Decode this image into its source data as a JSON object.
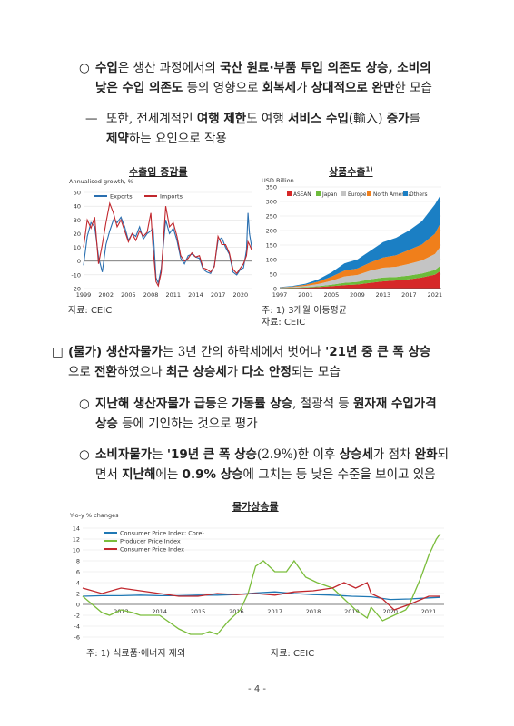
{
  "paragraphs": {
    "p1": {
      "marker": "○",
      "line1": [
        {
          "t": "수입",
          "b": true
        },
        {
          "t": "은 생산 과정에서의 ",
          "b": false
        },
        {
          "t": "국산 원료·부품 투입 의존도 상승, 소비의",
          "b": true
        }
      ],
      "line2": [
        {
          "t": "낮은 수입 의존도",
          "b": true
        },
        {
          "t": " 등의 영향으로 ",
          "b": false
        },
        {
          "t": "회복세",
          "b": true
        },
        {
          "t": "가 ",
          "b": false
        },
        {
          "t": "상대적으로 완만",
          "b": true
        },
        {
          "t": "한 모습",
          "b": false
        }
      ]
    },
    "p2": {
      "marker": "—",
      "line1": [
        {
          "t": "또한, 전세계적인 ",
          "b": false
        },
        {
          "t": "여행 제한",
          "b": true
        },
        {
          "t": "도 여행 ",
          "b": false
        },
        {
          "t": "서비스 수입",
          "b": true
        },
        {
          "t": "(輸入) ",
          "b": false
        },
        {
          "t": "증가",
          "b": true
        },
        {
          "t": "를",
          "b": false
        }
      ],
      "line2": [
        {
          "t": "제약",
          "b": true
        },
        {
          "t": "하는 요인으로 작용",
          "b": false
        }
      ]
    },
    "p3": {
      "marker": "□",
      "line1": [
        {
          "t": "(물가) 생산자물가",
          "b": true
        },
        {
          "t": "는 3년 간의 하락세에서 벗어나 ",
          "b": false
        },
        {
          "t": "'21년 중 큰 폭 상승",
          "b": true
        }
      ],
      "line2": [
        {
          "t": "으로 ",
          "b": false
        },
        {
          "t": "전환",
          "b": true
        },
        {
          "t": "하였으나 ",
          "b": false
        },
        {
          "t": "최근 상승세",
          "b": true
        },
        {
          "t": "가 ",
          "b": false
        },
        {
          "t": "다소 안정",
          "b": true
        },
        {
          "t": "되는 모습",
          "b": false
        }
      ]
    },
    "p4": {
      "marker": "○",
      "line1": [
        {
          "t": "지난해 생산자물가 급등",
          "b": true
        },
        {
          "t": "은 ",
          "b": false
        },
        {
          "t": "가동률 상승",
          "b": true
        },
        {
          "t": ", 철광석 등 ",
          "b": false
        },
        {
          "t": "원자재 수입가격",
          "b": true
        }
      ],
      "line2": [
        {
          "t": "상승",
          "b": true
        },
        {
          "t": " 등에 기인하는 것으로 평가",
          "b": false
        }
      ]
    },
    "p5": {
      "marker": "○",
      "line1": [
        {
          "t": "소비자물가",
          "b": true
        },
        {
          "t": "는 ",
          "b": false
        },
        {
          "t": "'19년 큰 폭 상승",
          "b": true
        },
        {
          "t": "(2.9%)한 이후 ",
          "b": false
        },
        {
          "t": "상승세",
          "b": true
        },
        {
          "t": "가 점차 ",
          "b": false
        },
        {
          "t": "완화",
          "b": true
        },
        {
          "t": "되",
          "b": false
        }
      ],
      "line2": [
        {
          "t": "면서 ",
          "b": false
        },
        {
          "t": "지난해",
          "b": true
        },
        {
          "t": "에는 ",
          "b": false
        },
        {
          "t": "0.9% 상승",
          "b": true
        },
        {
          "t": "에 그치는 등 낮은 수준을 보이고 있음",
          "b": false
        }
      ]
    }
  },
  "chart1": {
    "title": "수출입 증감률",
    "source": "자료: CEIC"
  },
  "chart2": {
    "title": "상품수출",
    "title_sup": "1)",
    "note": "주: 1) 3개월 이동평균",
    "source": "자료: CEIC"
  },
  "chart3": {
    "title": "물가상승률",
    "note": "주: 1) 식료품·에너지 제외",
    "source": "자료: CEIC"
  },
  "page_number": "- 4 -",
  "chart_data": [
    {
      "type": "line",
      "ylabel": "Annualised growth, %",
      "ylim": [
        -20,
        50
      ],
      "yticks": [
        50,
        40,
        30,
        20,
        10,
        0,
        -10,
        -20
      ],
      "x_ticks": [
        "1999",
        "2002",
        "2005",
        "2008",
        "2011",
        "2014",
        "2017",
        "2020"
      ],
      "xlim": [
        1999,
        2021.6
      ],
      "legend_position": "top-left",
      "series": [
        {
          "name": "Exports",
          "color": "#2a6fb0",
          "x": [
            1999,
            1999.5,
            2000,
            2000.5,
            2001,
            2001.5,
            2002,
            2002.5,
            2003,
            2003.5,
            2004,
            2004.5,
            2005,
            2005.5,
            2006,
            2006.5,
            2007,
            2007.5,
            2008,
            2008.3,
            2008.7,
            2009,
            2009.4,
            2010,
            2010.5,
            2011,
            2011.5,
            2012,
            2012.5,
            2013,
            2013.5,
            2014,
            2014.5,
            2015,
            2015.5,
            2016,
            2016.5,
            2017,
            2017.5,
            2018,
            2018.5,
            2019,
            2019.5,
            2020,
            2020.4,
            2020.8,
            2021,
            2021.2,
            2021.5
          ],
          "y": [
            -3,
            18,
            28,
            25,
            3,
            -8,
            12,
            22,
            30,
            28,
            32,
            25,
            15,
            20,
            18,
            25,
            16,
            20,
            22,
            24,
            -12,
            -16,
            -5,
            30,
            20,
            24,
            15,
            2,
            -2,
            4,
            5,
            3,
            2,
            -6,
            -8,
            -9,
            -3,
            15,
            17,
            10,
            5,
            -8,
            -10,
            -6,
            -5,
            8,
            35,
            20,
            10
          ]
        },
        {
          "name": "Imports",
          "color": "#c1272d",
          "x": [
            1999,
            1999.5,
            2000,
            2000.5,
            2001,
            2001.5,
            2002,
            2002.5,
            2003,
            2003.5,
            2004,
            2004.5,
            2005,
            2005.5,
            2006,
            2006.5,
            2007,
            2007.5,
            2008,
            2008.3,
            2008.7,
            2009,
            2009.4,
            2010,
            2010.5,
            2011,
            2011.5,
            2012,
            2012.5,
            2013,
            2013.5,
            2014,
            2014.5,
            2015,
            2015.5,
            2016,
            2016.5,
            2017,
            2017.5,
            2018,
            2018.5,
            2019,
            2019.5,
            2020,
            2020.4,
            2020.8,
            2021,
            2021.2,
            2021.5
          ],
          "y": [
            10,
            30,
            24,
            32,
            -2,
            12,
            28,
            42,
            35,
            25,
            30,
            22,
            14,
            20,
            15,
            22,
            18,
            21,
            35,
            10,
            -15,
            -18,
            -8,
            40,
            25,
            28,
            18,
            4,
            0,
            2,
            6,
            3,
            4,
            -5,
            -6,
            -8,
            -4,
            18,
            12,
            12,
            6,
            -6,
            -9,
            -5,
            -2,
            4,
            14,
            12,
            8
          ]
        }
      ]
    },
    {
      "type": "area",
      "ylabel": "USD Billion",
      "ylim": [
        0,
        350
      ],
      "yticks": [
        350,
        300,
        250,
        200,
        150,
        100,
        50,
        0
      ],
      "x_ticks": [
        "1997",
        "2001",
        "2005",
        "2009",
        "2013",
        "2017",
        "2021"
      ],
      "xlim": [
        1997,
        2022
      ],
      "legend_position": "top-left",
      "stacked": true,
      "series": [
        {
          "name": "ASEAN",
          "color": "#d62828"
        },
        {
          "name": "Japan",
          "color": "#6dbb3b"
        },
        {
          "name": "Europe",
          "color": "#c4c4c4"
        },
        {
          "name": "North America",
          "color": "#f07f1b"
        },
        {
          "name": "Others",
          "color": "#1b7fc4"
        }
      ],
      "x": [
        1997,
        1999,
        2001,
        2003,
        2005,
        2007,
        2009,
        2011,
        2013,
        2015,
        2017,
        2019,
        2021,
        2021.8
      ],
      "stack_values": {
        "ASEAN": [
          1,
          2,
          3,
          5,
          8,
          12,
          14,
          20,
          25,
          28,
          32,
          38,
          48,
          60
        ],
        "Japan": [
          1,
          1,
          2,
          3,
          5,
          8,
          9,
          12,
          13,
          12,
          13,
          14,
          16,
          18
        ],
        "Europe": [
          1,
          2,
          4,
          8,
          14,
          22,
          24,
          30,
          34,
          35,
          40,
          45,
          55,
          65
        ],
        "North America": [
          1,
          2,
          4,
          8,
          14,
          20,
          22,
          28,
          35,
          40,
          48,
          55,
          70,
          80
        ],
        "Others": [
          1,
          2,
          4,
          8,
          15,
          25,
          31,
          40,
          53,
          60,
          67,
          80,
          101,
          97
        ]
      }
    },
    {
      "type": "line",
      "ylabel": "Y-o-y % changes",
      "ylim": [
        -6,
        14
      ],
      "yticks": [
        14,
        12,
        10,
        8,
        6,
        4,
        2,
        0,
        -2,
        -4,
        -6
      ],
      "x_ticks": [
        "2013",
        "2014",
        "2015",
        "2016",
        "2017",
        "2018",
        "2019",
        "2020",
        "2021"
      ],
      "xlim": [
        2012.5,
        2021.9
      ],
      "legend_position": "top-left",
      "series": [
        {
          "name": "Consumer Price Index: Core¹",
          "color": "#1f78b4",
          "x": [
            2012.5,
            2013,
            2013.5,
            2014,
            2014.5,
            2015,
            2015.5,
            2016,
            2016.5,
            2017,
            2017.5,
            2018,
            2018.5,
            2019,
            2019.5,
            2020,
            2020.5,
            2021,
            2021.5,
            2021.8
          ],
          "y": [
            1.5,
            1.6,
            1.6,
            1.7,
            1.6,
            1.6,
            1.7,
            1.7,
            1.8,
            2.1,
            2.3,
            2.0,
            1.8,
            1.7,
            1.5,
            1.4,
            0.9,
            1.0,
            1.2,
            1.3
          ]
        },
        {
          "name": "Producer Price Index",
          "color": "#7bbd3c",
          "x": [
            2012.5,
            2013,
            2013.2,
            2013.5,
            2013.8,
            2014,
            2014.5,
            2015,
            2015.3,
            2015.6,
            2015.8,
            2016,
            2016.3,
            2016.6,
            2016.8,
            2017,
            2017.2,
            2017.5,
            2017.8,
            2018,
            2018.3,
            2018.6,
            2019,
            2019.3,
            2019.6,
            2019.9,
            2020,
            2020.3,
            2020.6,
            2020.9,
            2021,
            2021.3,
            2021.5,
            2021.7,
            2021.8
          ],
          "y": [
            1.5,
            -1.5,
            -2.0,
            -1.0,
            -1.5,
            -2.0,
            -2.0,
            -4.5,
            -5.5,
            -5.5,
            -5.0,
            -5.5,
            -3,
            -1,
            2,
            7,
            8,
            6,
            6,
            8,
            5,
            4,
            3,
            1,
            -1,
            -2.5,
            -0.5,
            -3,
            -2,
            -1,
            0,
            5,
            9,
            12,
            13
          ]
        },
        {
          "name": "Consumer Price Index",
          "color": "#c1272d",
          "x": [
            2012.5,
            2013,
            2013.5,
            2014,
            2014.5,
            2015,
            2015.5,
            2016,
            2016.5,
            2017,
            2017.5,
            2018,
            2018.5,
            2019,
            2019.3,
            2019.6,
            2019.9,
            2020,
            2020.3,
            2020.6,
            2021,
            2021.5,
            2021.8
          ],
          "y": [
            3,
            2,
            3,
            2.5,
            2,
            1.5,
            1.5,
            2,
            1.8,
            2,
            1.7,
            2.3,
            2.5,
            3,
            4,
            3,
            4,
            2,
            1,
            -1,
            0,
            1.5,
            1.5
          ]
        }
      ]
    }
  ]
}
